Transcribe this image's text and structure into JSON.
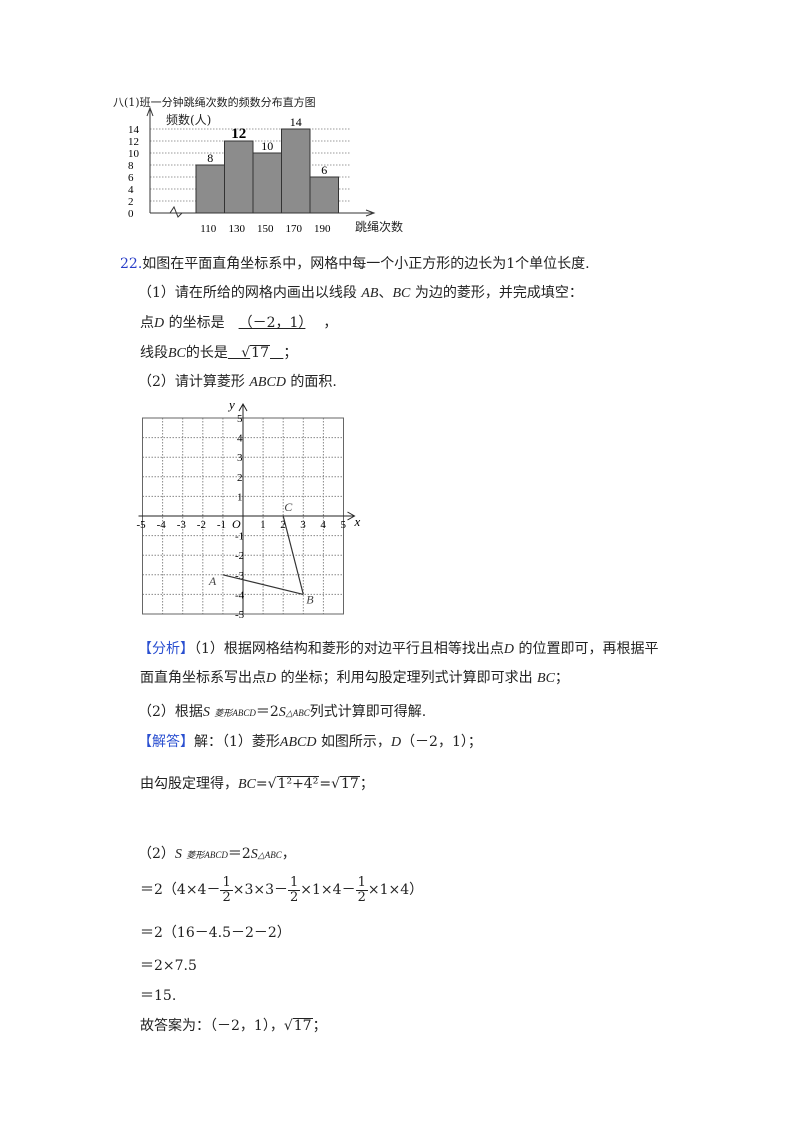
{
  "histogram": {
    "chart_data": {
      "type": "bar",
      "title": "八(1)班一分钟跳绳次数的频数分布直方图",
      "ylabel": "频数(人)",
      "xlabel": "跳绳次数",
      "categories": [
        "110",
        "130",
        "150",
        "170",
        "190"
      ],
      "values": [
        8,
        12,
        10,
        14,
        6
      ],
      "yticks": [
        0,
        2,
        4,
        6,
        8,
        10,
        12,
        14
      ],
      "ylim": [
        0,
        14
      ],
      "grid": true,
      "bar_color": "#8c8c8c"
    }
  },
  "problem": {
    "number": "22.",
    "stem": "如图在平面直角坐标系中，网格中每一个小正方形的边长为1个单位长度.",
    "part1_prefix": "（1）请在所给的网格内画出以线段",
    "part1_ab": "AB",
    "part1_sep": "、",
    "part1_bc": "BC",
    "part1_suffix": "为边的菱形，并完成填空：",
    "d_prefix": "点",
    "d_label": "D",
    "d_mid": "的坐标是",
    "d_answer": "（－2，1）",
    "d_end": "，",
    "bc_prefix": "线段",
    "bc_label": "BC",
    "bc_mid": "的长是",
    "bc_answer": "17",
    "bc_end": "；",
    "part2_prefix": "（2）请计算菱形",
    "part2_label": "ABCD",
    "part2_suffix": "的面积."
  },
  "coordinate_figure": {
    "x_axis_label": "x",
    "y_axis_label": "y",
    "origin_label": "O",
    "range": [
      -5,
      5
    ],
    "ticks": [
      -5,
      -4,
      -3,
      -2,
      -1,
      1,
      2,
      3,
      4,
      5
    ],
    "points": [
      {
        "label": "A",
        "x": -1,
        "y": -3
      },
      {
        "label": "B",
        "x": 3,
        "y": -4
      },
      {
        "label": "C",
        "x": 2,
        "y": 0
      }
    ]
  },
  "analysis": {
    "tag": "【分析】",
    "line1": "（1）根据网格结构和菱形的对边平行且相等找出点",
    "line1_d": "D",
    "line1_end": "的位置即可，再根据平",
    "line2": "面直角坐标系写出点",
    "line2_d": "D",
    "line2_mid": "的坐标；利用勾股定理列式计算即可求出",
    "line2_bc": "BC",
    "line2_end": "；",
    "line3_prefix": "（2）根据",
    "line3_s": "S",
    "line3_sub1": "菱形ABCD",
    "line3_eq": "＝2",
    "line3_s2": "S",
    "line3_sub2": "△ABC",
    "line3_end": "列式计算即可得解."
  },
  "solution": {
    "tag": "【解答】",
    "line1_a": "解：（1）菱形",
    "line1_abcd": "ABCD",
    "line1_b": "如图所示，",
    "line1_d": "D",
    "line1_c": "（－2，1）；",
    "line2_a": "由勾股定理得，",
    "line2_bc": "BC",
    "line2_eq": "=",
    "line2_rad": "1²+4²",
    "line2_eq2": "=",
    "line2_res": "17",
    "line2_end": "；",
    "p2_a": "（2）",
    "p2_s": "S",
    "p2_sub1": "菱形ABCD",
    "p2_eq": "＝2",
    "p2_s2": "S",
    "p2_sub2": "△ABC",
    "p2_end": "，",
    "step1_a": "＝2（4×4－",
    "step1_b": "×3×3－",
    "step1_c": "×1×4－",
    "step1_d": "×1×4）",
    "frac_num": "1",
    "frac_den": "2",
    "step2": "＝2（16－4.5－2－2）",
    "step3": "＝2×7.5",
    "step4": "＝15.",
    "final_a": "故答案为：（－2，1），",
    "final_rad": "17",
    "final_end": "；"
  }
}
